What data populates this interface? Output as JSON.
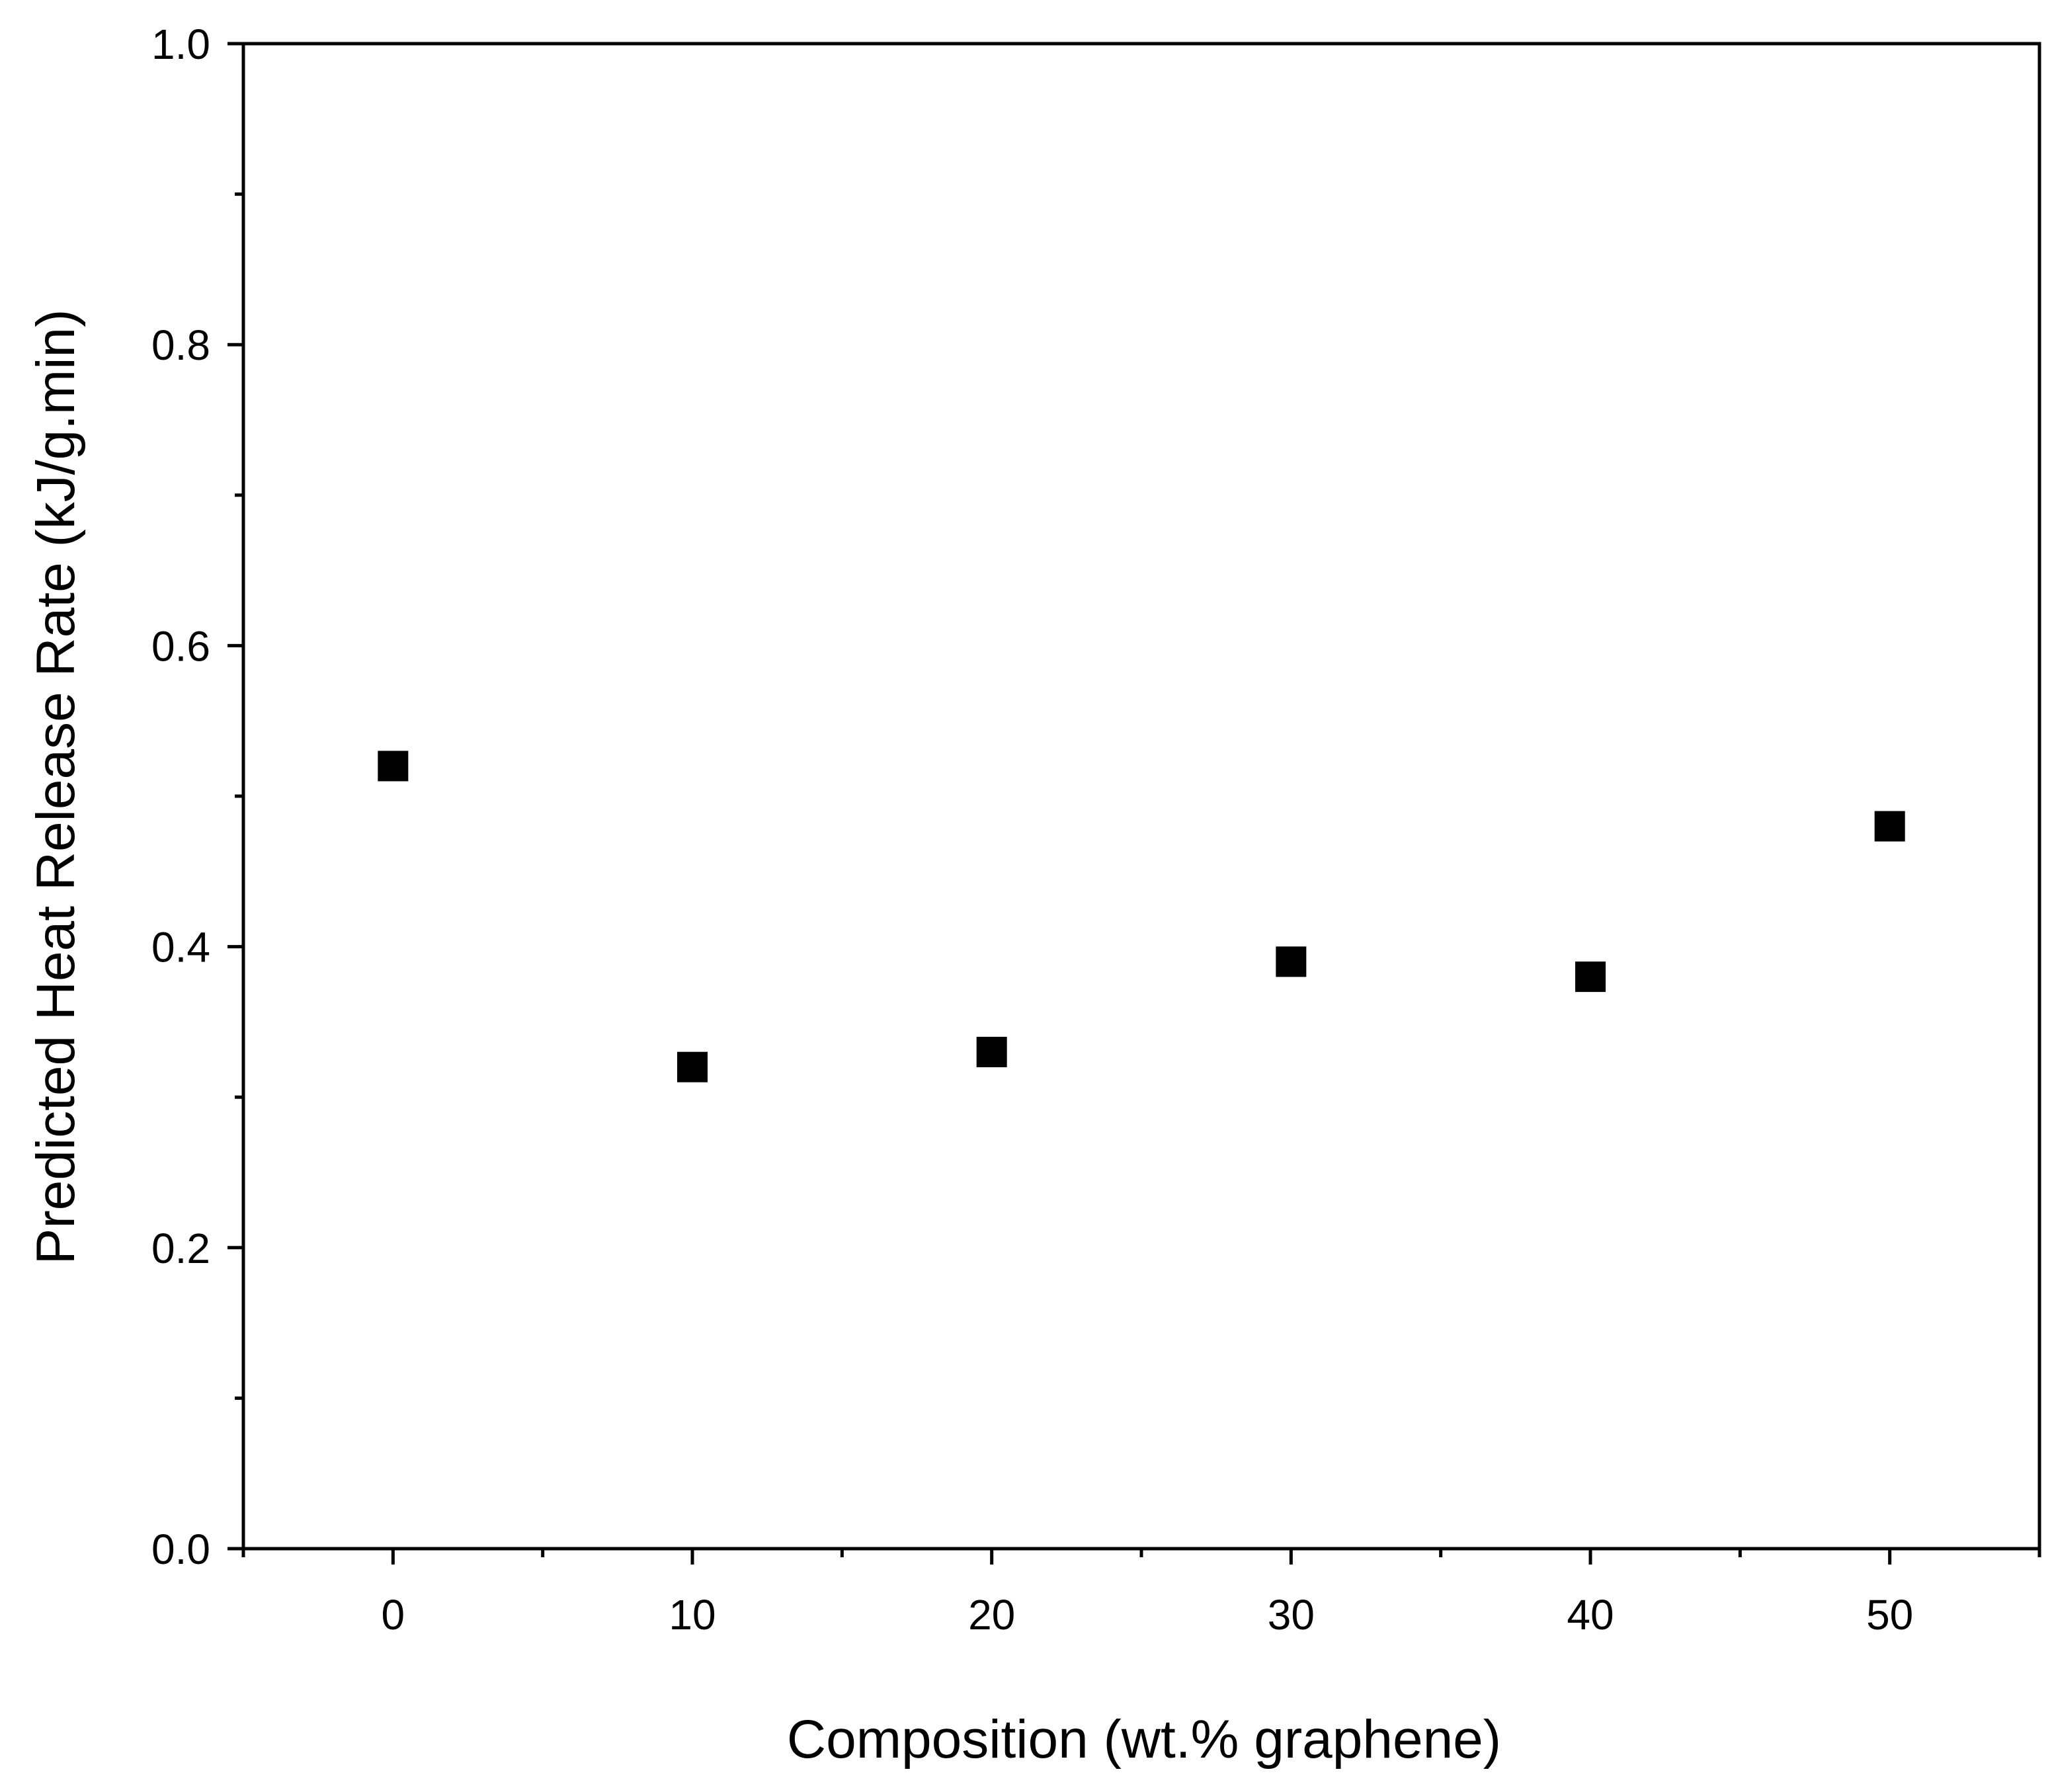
{
  "chart_data": {
    "type": "scatter",
    "xlabel": "Composition (wt.% graphene)",
    "ylabel": "Predicted Heat Release Rate (kJ/g.min)",
    "xlim": [
      -5,
      55
    ],
    "ylim": [
      0,
      1.0
    ],
    "x_ticks": [
      "0",
      "10",
      "20",
      "30",
      "40",
      "50"
    ],
    "y_ticks": [
      "0.0",
      "0.2",
      "0.4",
      "0.6",
      "0.8",
      "1.0"
    ],
    "grid": false,
    "marker": "square",
    "marker_color": "#000000",
    "series": [
      {
        "x": [
          0,
          10,
          20,
          30,
          40,
          50
        ],
        "y": [
          0.52,
          0.32,
          0.33,
          0.39,
          0.38,
          0.48
        ]
      }
    ]
  }
}
